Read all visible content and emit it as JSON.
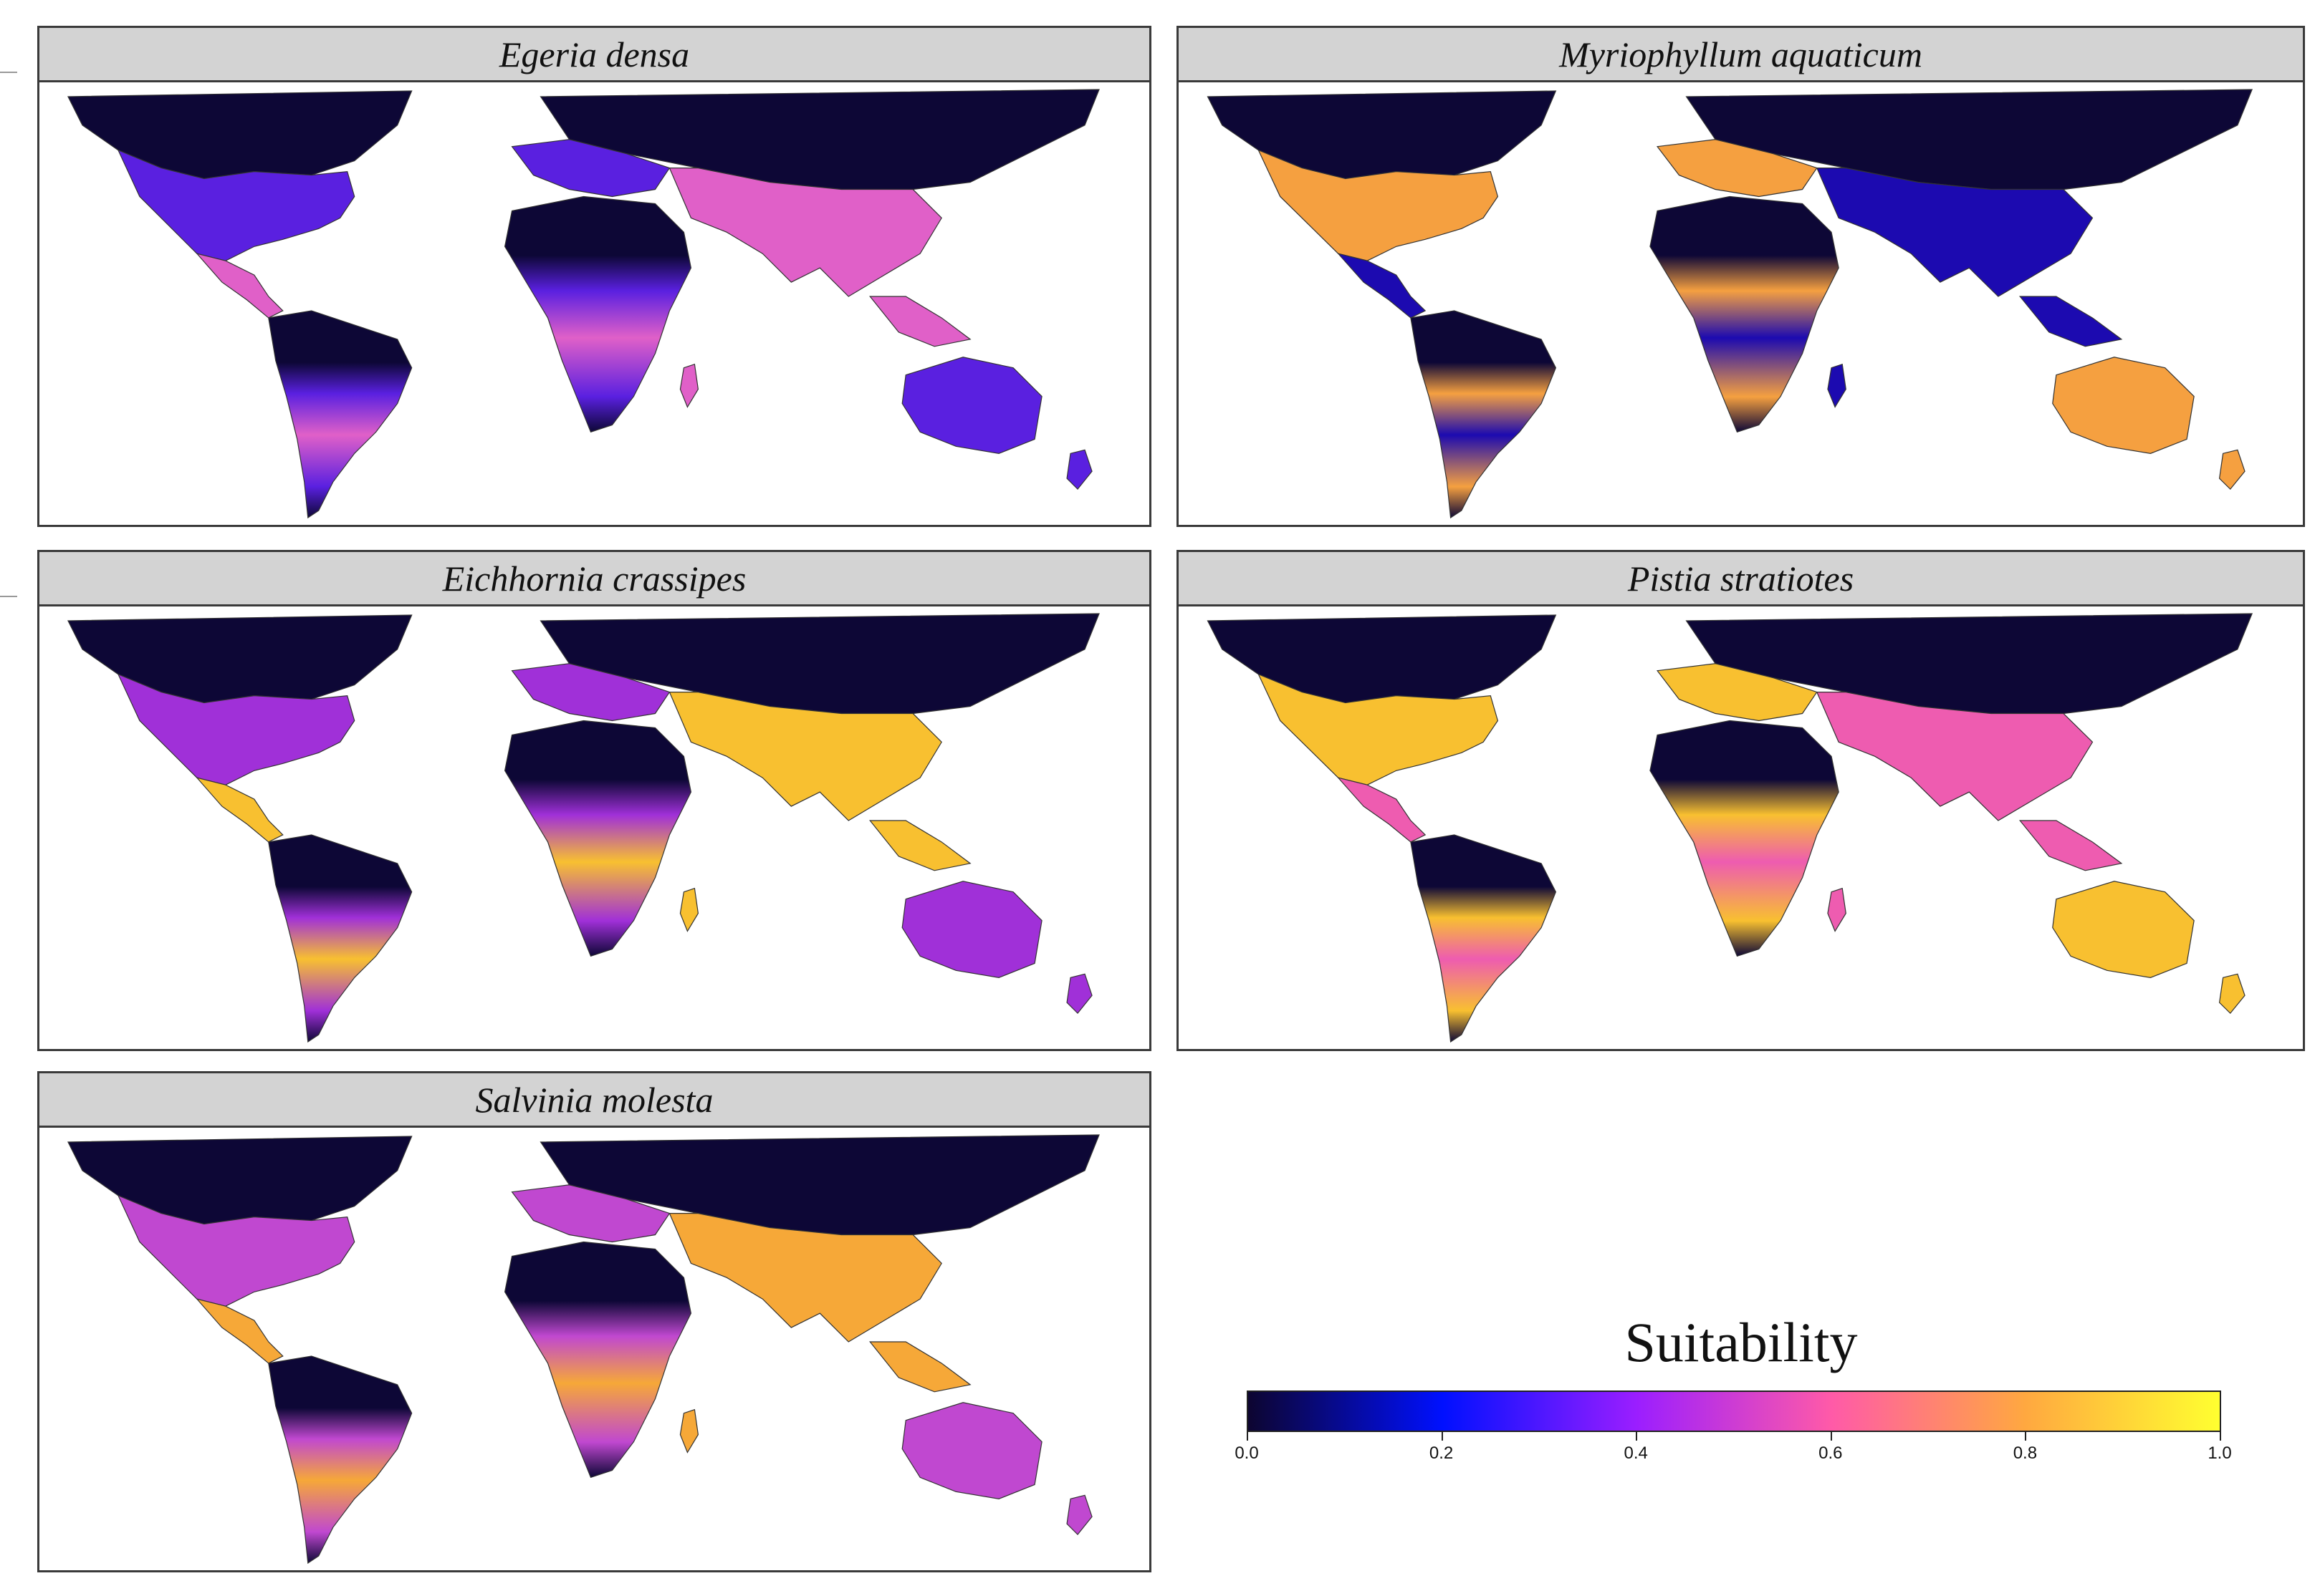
{
  "panels": [
    {
      "id": "egeria",
      "title": "Egeria densa",
      "level": 0.55,
      "tropic": "#e060c8",
      "temperate": "#5a20e0"
    },
    {
      "id": "myrio",
      "title": "Myriophyllum aquaticum",
      "level": 0.45,
      "tropic": "#1c0ab0",
      "temperate": "#f5a040"
    },
    {
      "id": "eich",
      "title": "Eichhornia crassipes",
      "level": 0.8,
      "tropic": "#f8c030",
      "temperate": "#a030d8"
    },
    {
      "id": "pistia",
      "title": "Pistia stratiotes",
      "level": 0.75,
      "tropic": "#ee5cb0",
      "temperate": "#f8c030"
    },
    {
      "id": "salvinia",
      "title": "Salvinia molesta",
      "level": 0.8,
      "tropic": "#f6a838",
      "temperate": "#c048d0"
    }
  ],
  "legend": {
    "title": "Suitability",
    "ticks": [
      "0.0",
      "0.2",
      "0.4",
      "0.6",
      "0.8",
      "1.0"
    ],
    "tick_values": [
      0.0,
      0.2,
      0.4,
      0.6,
      0.8,
      1.0
    ],
    "colors": [
      "#0d0530",
      "#0010ff",
      "#9b1eff",
      "#ff5aa8",
      "#ffa840",
      "#ffff30"
    ],
    "range": [
      0.0,
      1.0
    ]
  },
  "colors": {
    "polar": "#0d0736",
    "border": "#333333",
    "panel_header": "#d3d3d3"
  }
}
